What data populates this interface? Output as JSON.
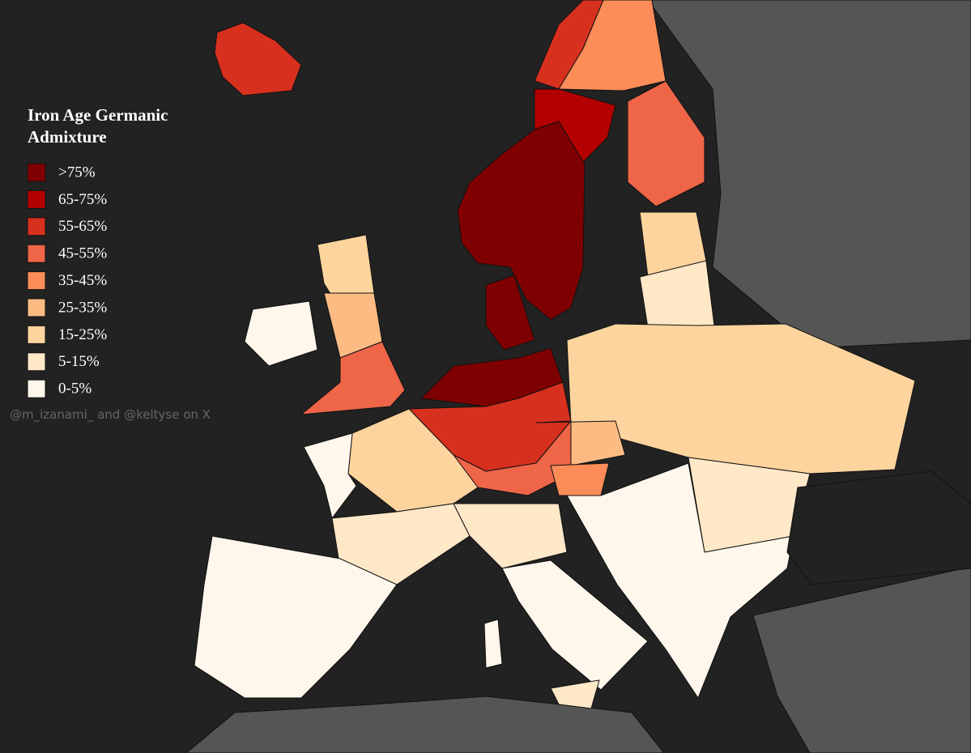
{
  "legend": {
    "title": [
      "Iron Age Germanic",
      "Admixture"
    ],
    "items": [
      {
        "label": ">75%",
        "color": "#7f0000"
      },
      {
        "label": "65-75%",
        "color": "#b30000"
      },
      {
        "label": "55-65%",
        "color": "#d7301f"
      },
      {
        "label": "45-55%",
        "color": "#ef6548"
      },
      {
        "label": "35-45%",
        "color": "#fc8d59"
      },
      {
        "label": "25-35%",
        "color": "#fdbb84"
      },
      {
        "label": "15-25%",
        "color": "#fdd49e"
      },
      {
        "label": "5-15%",
        "color": "#fee8c8"
      },
      {
        "label": "0-5%",
        "color": "#fff7ec"
      }
    ]
  },
  "credit": "@m_izanami_ and @keltyse on X"
}
